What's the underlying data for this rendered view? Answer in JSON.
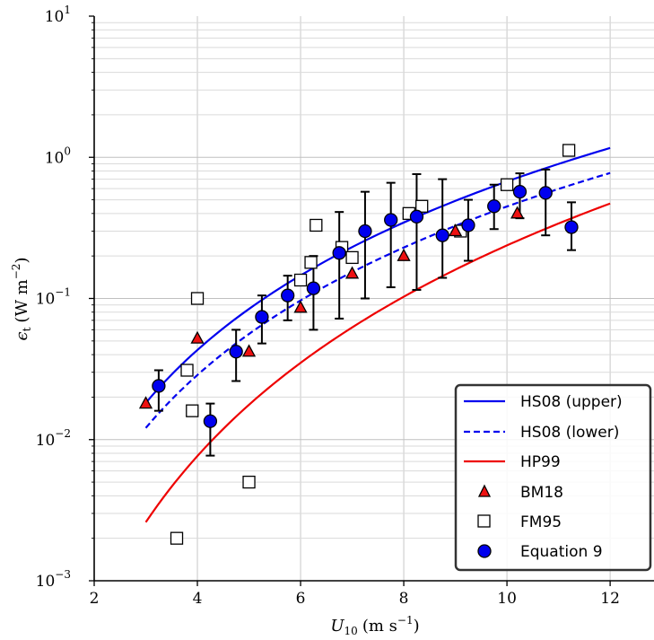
{
  "chart_data": {
    "type": "scatter",
    "xlabel_main": "U",
    "xlabel_sub": "10",
    "xlabel_unit_pre": "(m s",
    "xlabel_unit_exp": "−1",
    "xlabel_unit_post": ")",
    "ylabel_main": "ϵ",
    "ylabel_sub": "t",
    "ylabel_unit_pre": "(W m",
    "ylabel_unit_exp": "−2",
    "ylabel_unit_post": ")",
    "xlim": [
      2,
      12.85
    ],
    "ylim": [
      0.001,
      10
    ],
    "yscale": "log",
    "grid": true,
    "legend_position": "lower-right",
    "x_ticks": [
      {
        "value": 2,
        "label": "2"
      },
      {
        "value": 4,
        "label": "4"
      },
      {
        "value": 6,
        "label": "6"
      },
      {
        "value": 8,
        "label": "8"
      },
      {
        "value": 10,
        "label": "10"
      },
      {
        "value": 12,
        "label": "12"
      }
    ],
    "y_ticks": [
      {
        "value": 0.001,
        "base": "10",
        "exp": "−3"
      },
      {
        "value": 0.01,
        "base": "10",
        "exp": "−2"
      },
      {
        "value": 0.1,
        "base": "10",
        "exp": "−1"
      },
      {
        "value": 1,
        "base": "10",
        "exp": "0"
      },
      {
        "value": 10,
        "base": "10",
        "exp": "1"
      }
    ],
    "lines": [
      {
        "name": "HS08 (upper)",
        "color": "#0000ee",
        "dash": "solid",
        "x_range": [
          3,
          12
        ],
        "a": 0.0182,
        "b": 3.0,
        "ref_x": 3.0
      },
      {
        "name": "HS08 (lower)",
        "color": "#0000ee",
        "dash": "dashed",
        "x_range": [
          3,
          12
        ],
        "a": 0.0121,
        "b": 3.0,
        "ref_x": 3.0
      },
      {
        "name": "HP99",
        "color": "#ee0000",
        "dash": "solid",
        "x_range": [
          3,
          12
        ],
        "a": 0.0026,
        "b": 3.75,
        "ref_x": 3.0
      }
    ],
    "bm18": {
      "name": "BM18",
      "color": "#ee1111",
      "x": [
        3.0,
        4.0,
        5.0,
        6.0,
        7.0,
        8.0,
        9.0,
        10.2
      ],
      "y": [
        0.018,
        0.052,
        0.042,
        0.086,
        0.15,
        0.2,
        0.3,
        0.4
      ]
    },
    "fm95": {
      "name": "FM95",
      "x": [
        3.6,
        3.8,
        3.9,
        4.0,
        5.0,
        6.0,
        6.2,
        6.3,
        6.8,
        7.0,
        8.1,
        8.35,
        9.1,
        10.0,
        11.2
      ],
      "y": [
        0.002,
        0.031,
        0.016,
        0.1,
        0.005,
        0.135,
        0.18,
        0.33,
        0.23,
        0.195,
        0.4,
        0.45,
        0.3,
        0.64,
        1.12
      ]
    },
    "eq9": {
      "name": "Equation 9",
      "color": "#0000ee",
      "x": [
        3.25,
        4.25,
        4.75,
        5.25,
        5.75,
        6.25,
        6.75,
        7.25,
        7.75,
        8.25,
        8.75,
        9.25,
        9.75,
        10.25,
        10.75,
        11.25
      ],
      "y": [
        0.024,
        0.0135,
        0.042,
        0.074,
        0.105,
        0.118,
        0.21,
        0.3,
        0.36,
        0.38,
        0.28,
        0.33,
        0.45,
        0.57,
        0.56,
        0.32
      ],
      "y_low": [
        0.016,
        0.0077,
        0.026,
        0.048,
        0.07,
        0.06,
        0.072,
        0.1,
        0.12,
        0.115,
        0.14,
        0.185,
        0.31,
        0.37,
        0.28,
        0.22
      ],
      "y_high": [
        0.031,
        0.018,
        0.06,
        0.105,
        0.145,
        0.2,
        0.41,
        0.57,
        0.66,
        0.76,
        0.7,
        0.5,
        0.64,
        0.77,
        0.82,
        0.48
      ]
    }
  }
}
